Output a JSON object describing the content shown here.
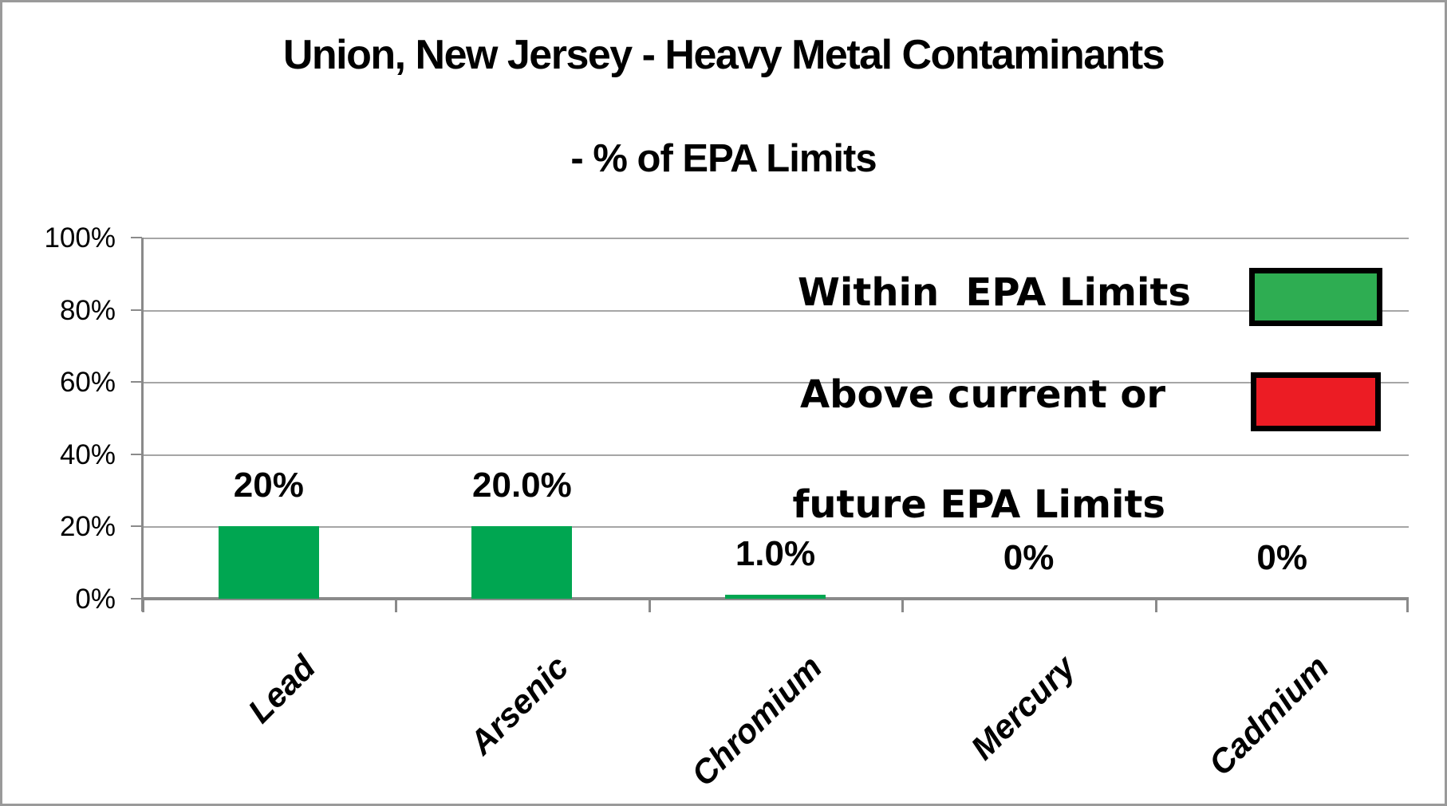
{
  "chart_data": {
    "type": "bar",
    "title": "Union, New Jersey - Heavy Metal Contaminants",
    "subtitle": "- % of EPA Limits",
    "categories": [
      "Lead",
      "Arsenic",
      "Chromium",
      "Mercury",
      "Cadmium"
    ],
    "values": [
      20,
      20,
      1,
      0,
      0
    ],
    "bar_labels": [
      "20%",
      "20.0%",
      "1.0%",
      "0%",
      "0%"
    ],
    "ylim": [
      0,
      100
    ],
    "ytick_step": 20,
    "ytick_labels": [
      "100%",
      "80%",
      "60%",
      "40%",
      "20%",
      "0%"
    ],
    "grid": true,
    "legend_position": "inside-upper-right",
    "legend": [
      {
        "label": "Within  EPA Limits",
        "lines": [
          "Within  EPA Limits",
          ""
        ],
        "swatch": "legend_green"
      },
      {
        "label": "Above current or future EPA Limits",
        "lines": [
          "Above current or",
          "future EPA Limits"
        ],
        "swatch": "legend_red"
      }
    ],
    "colors": {
      "bar_green": "#00a651",
      "legend_green": "#2ead52",
      "legend_red": "#ec1c24",
      "gridline": "#a6a6a6",
      "axis": "#8a8a8a",
      "frame": "#9a9a9a",
      "text": "#000000"
    }
  }
}
